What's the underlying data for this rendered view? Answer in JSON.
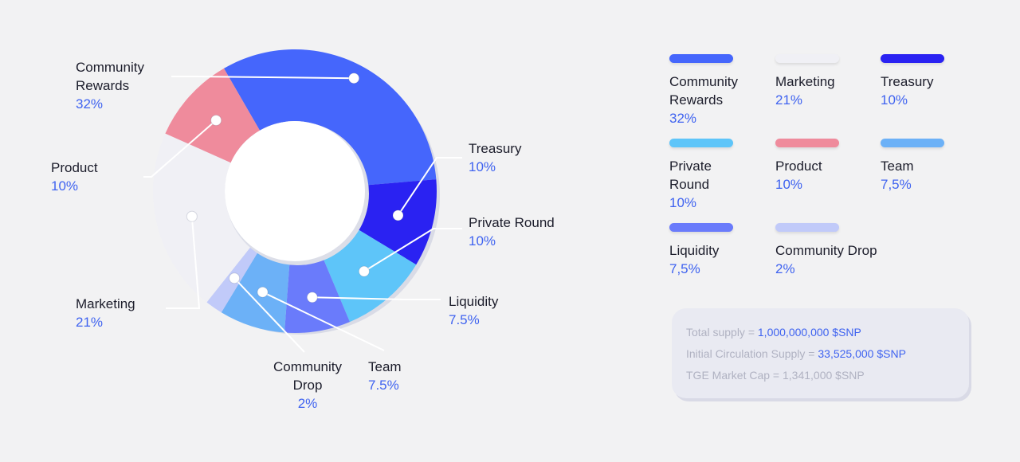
{
  "chart_data": {
    "type": "pie",
    "donut": true,
    "slices": [
      {
        "label": "Community Rewards",
        "value": 32,
        "value_label": "32%",
        "color": "#4566fc"
      },
      {
        "label": "Treasury",
        "value": 10,
        "value_label": "10%",
        "color": "#2a22f2"
      },
      {
        "label": "Private Round",
        "value": 10,
        "value_label": "10%",
        "color": "#5ec5f9"
      },
      {
        "label": "Liquidity",
        "value": 7.5,
        "value_label": "7.5%",
        "color": "#6a7bfb"
      },
      {
        "label": "Team",
        "value": 7.5,
        "value_label": "7.5%",
        "color": "#6cb1f7"
      },
      {
        "label": "Community Drop",
        "value": 2,
        "value_label": "2%",
        "color": "#c1caf9"
      },
      {
        "label": "Marketing",
        "value": 21,
        "value_label": "21%",
        "color": "#f0f0f5"
      },
      {
        "label": "Product",
        "value": 10,
        "value_label": "10%",
        "color": "#ef8b9c"
      }
    ]
  },
  "callouts": [
    {
      "lines": [
        "Community",
        "Rewards"
      ],
      "pct": "32%"
    },
    {
      "lines": [
        "Treasury"
      ],
      "pct": "10%"
    },
    {
      "lines": [
        "Private Round"
      ],
      "pct": "10%"
    },
    {
      "lines": [
        "Liquidity"
      ],
      "pct": "7.5%"
    },
    {
      "lines": [
        "Team"
      ],
      "pct": "7.5%"
    },
    {
      "lines": [
        "Community",
        "Drop"
      ],
      "pct": "2%"
    },
    {
      "lines": [
        "Marketing"
      ],
      "pct": "21%"
    },
    {
      "lines": [
        "Product"
      ],
      "pct": "10%"
    }
  ],
  "legend": [
    {
      "lines": [
        "Community",
        "Rewards"
      ],
      "pct": "32%",
      "color": "#4566fc"
    },
    {
      "lines": [
        "Marketing"
      ],
      "pct": "21%",
      "color": "#f0f0f5"
    },
    {
      "lines": [
        "Treasury"
      ],
      "pct": "10%",
      "color": "#2a22f2"
    },
    {
      "lines": [
        "Private",
        "Round"
      ],
      "pct": "10%",
      "color": "#5ec5f9"
    },
    {
      "lines": [
        "Product"
      ],
      "pct": "10%",
      "color": "#ef8b9c"
    },
    {
      "lines": [
        "Team"
      ],
      "pct": "7,5%",
      "color": "#6cb1f7"
    },
    {
      "lines": [
        "Liquidity"
      ],
      "pct": "7,5%",
      "color": "#6a7bfb"
    },
    {
      "lines": [
        "Community Drop"
      ],
      "pct": "2%",
      "color": "#c1caf9"
    }
  ],
  "supply": {
    "total_label": "Total supply = ",
    "total_value": "1,000,000,000 $SNP",
    "circ_label": "Initial Circulation Supply = ",
    "circ_value": "33,525,000 $SNP",
    "tge_label": "TGE Market Cap = ",
    "tge_value": "1,341,000 $SNP"
  }
}
